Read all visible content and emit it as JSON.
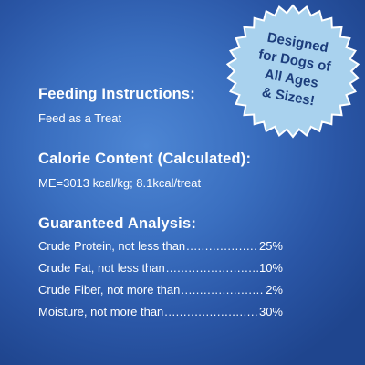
{
  "colors": {
    "background": "#2f62b4",
    "badge_fill": "#a9d2ee",
    "badge_text": "#1c3d7c",
    "text": "#ffffff"
  },
  "badge": {
    "lines": [
      "Designed",
      "for Dogs of",
      "All Ages",
      "& Sizes!"
    ]
  },
  "feeding": {
    "title": "Feeding Instructions:",
    "text": "Feed as a Treat"
  },
  "calorie": {
    "title": "Calorie Content (Calculated):",
    "text": "ME=3013 kcal/kg; 8.1kcal/treat"
  },
  "analysis": {
    "title": "Guaranteed Analysis:",
    "rows": [
      {
        "label": "Crude Protein, not less than",
        "value": "25%"
      },
      {
        "label": "Crude Fat, not less than",
        "value": "10%"
      },
      {
        "label": "Crude Fiber, not more than",
        "value": "2%"
      },
      {
        "label": "Moisture, not more than",
        "value": "30%"
      }
    ]
  }
}
